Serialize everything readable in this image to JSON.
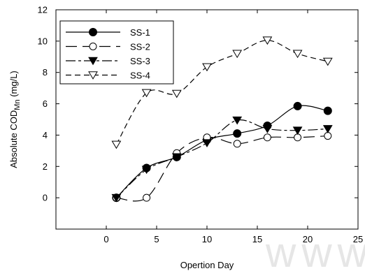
{
  "chart_data": {
    "type": "line",
    "xlabel": "Opertion Day",
    "ylabel_main": "Absolute COD",
    "ylabel_sub": "Mn",
    "ylabel_unit": " (mg/L)",
    "xlim": [
      -5,
      25
    ],
    "ylim": [
      -2,
      12
    ],
    "xticks": [
      0,
      5,
      10,
      15,
      20,
      25
    ],
    "yticks": [
      0,
      2,
      4,
      6,
      8,
      10,
      12
    ],
    "grid": false,
    "legend_position": "top-left",
    "series": [
      {
        "name": "SS-1",
        "marker": "circle-filled",
        "dash": "solid",
        "x": [
          1,
          4,
          7,
          10,
          13,
          16,
          19,
          22
        ],
        "y": [
          0.0,
          1.9,
          2.6,
          3.7,
          4.1,
          4.6,
          5.85,
          5.55
        ]
      },
      {
        "name": "SS-2",
        "marker": "circle-open",
        "dash": "longdash",
        "x": [
          1,
          4,
          7,
          10,
          13,
          16,
          19,
          22
        ],
        "y": [
          0.0,
          0.0,
          2.85,
          3.85,
          3.45,
          3.85,
          3.85,
          3.95
        ]
      },
      {
        "name": "SS-3",
        "marker": "triangle-down-filled",
        "dash": "dashdot",
        "x": [
          1,
          4,
          7,
          10,
          13,
          16,
          19,
          22
        ],
        "y": [
          0.0,
          1.8,
          2.6,
          3.5,
          4.95,
          4.4,
          4.3,
          4.4
        ]
      },
      {
        "name": "SS-4",
        "marker": "triangle-down-open",
        "dash": "shortdash",
        "x": [
          1,
          4,
          7,
          10,
          13,
          16,
          19,
          22
        ],
        "y": [
          3.4,
          6.7,
          6.65,
          8.35,
          9.2,
          10.05,
          9.2,
          8.7
        ]
      }
    ]
  },
  "watermark": "www.k"
}
